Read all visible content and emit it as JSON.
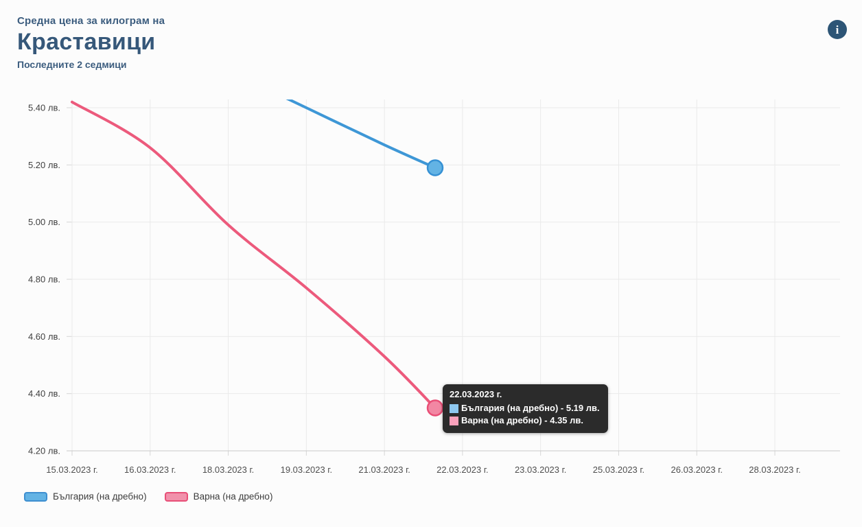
{
  "header": {
    "supertitle": "Средна цена за килограм на",
    "title": "Краставици",
    "subtitle": "Последните 2 седмици",
    "info_glyph": "i"
  },
  "chart_data": {
    "type": "line",
    "title": "Средна цена за килограм на Краставици",
    "subtitle": "Последните 2 седмици",
    "categories": [
      "15.03.2023 г.",
      "16.03.2023 г.",
      "18.03.2023 г.",
      "19.03.2023 г.",
      "21.03.2023 г.",
      "22.03.2023 г.",
      "23.03.2023 г.",
      "25.03.2023 г.",
      "26.03.2023 г.",
      "28.03.2023 г."
    ],
    "y_axis": {
      "unit": "лв.",
      "min": 4.2,
      "max": 5.4,
      "tick_step": 0.2,
      "tick_labels": [
        "5.40 лв.",
        "5.20 лв.",
        "5.00 лв.",
        "4.80 лв.",
        "4.60 лв.",
        "4.40 лв.",
        "4.20 лв."
      ]
    },
    "grid": true,
    "legend_position": "bottom-left",
    "series": [
      {
        "name": "България (на дребно)",
        "line_color": "#3e97d6",
        "marker_fill": "#63b3e4",
        "marker_stroke": "#3691d4",
        "values": [
          null,
          null,
          5.53,
          5.4,
          5.27,
          5.19,
          null,
          null,
          null,
          null
        ],
        "highlighted_value": 5.19
      },
      {
        "name": "Варна (на дребно)",
        "line_color": "#ec5a7c",
        "marker_fill": "#f287a3",
        "marker_stroke": "#e94e76",
        "values": [
          5.42,
          5.26,
          4.99,
          4.77,
          4.53,
          4.35,
          null,
          null,
          null,
          null
        ],
        "highlighted_value": 4.35
      }
    ]
  },
  "tooltip": {
    "date": "22.03.2023 г.",
    "separator": " - ",
    "rows": [
      {
        "label": "България (на дребно)",
        "value": "5.19 лв.",
        "swatch": "#8ec8f0"
      },
      {
        "label": "Варна (на дребно)",
        "value": "4.35 лв.",
        "swatch": "#f9a0bb"
      }
    ]
  },
  "legend": {
    "items": [
      {
        "label": "България (на дребно)",
        "fill": "#63b3e4",
        "border": "#3e8fd0"
      },
      {
        "label": "Варна (на дребно)",
        "fill": "#f191ab",
        "border": "#e84f77"
      }
    ]
  }
}
